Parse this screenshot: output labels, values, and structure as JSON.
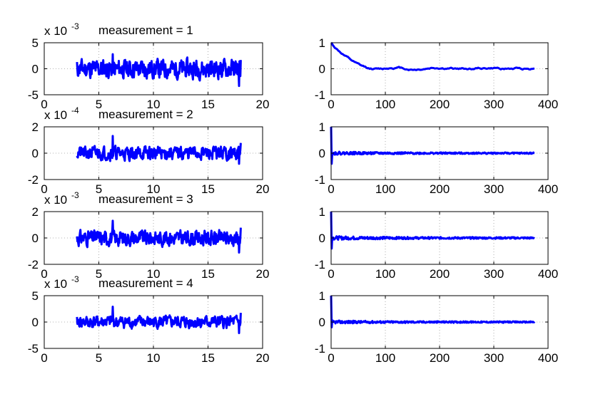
{
  "figure": {
    "series_color": "#0000ff",
    "grid": "dotted",
    "layout": "4 rows x 2 columns"
  },
  "chart_data": [
    {
      "type": "line",
      "title": "measurement = 1",
      "exponent_label": {
        "prefix": "x 10",
        "power": "-3"
      },
      "xlim": [
        0,
        20
      ],
      "ylim": [
        -5,
        5
      ],
      "xticks": [
        "0",
        "5",
        "10",
        "15",
        "20"
      ],
      "yticks": [
        "5",
        "0",
        "-5"
      ],
      "series": [
        {
          "x_range": [
            3,
            18
          ],
          "points": 380,
          "amplitude": 1.6,
          "peak": 2.8,
          "trough": -3.3,
          "seed": 11
        }
      ]
    },
    {
      "type": "line",
      "title": "",
      "xlim": [
        0,
        400
      ],
      "ylim": [
        -1,
        1
      ],
      "xticks": [
        "0",
        "100",
        "200",
        "300",
        "400"
      ],
      "yticks": [
        "1",
        "0",
        "-1"
      ],
      "series": [
        {
          "x_range": [
            0,
            375
          ],
          "start": 1.0,
          "settle": 0.05,
          "decay": 25,
          "noise": 0.12,
          "seed": 12
        }
      ]
    },
    {
      "type": "line",
      "title": "measurement = 2",
      "exponent_label": {
        "prefix": "x 10",
        "power": "-4"
      },
      "xlim": [
        0,
        20
      ],
      "ylim": [
        -2,
        2
      ],
      "xticks": [
        "0",
        "5",
        "10",
        "15",
        "20"
      ],
      "yticks": [
        "2",
        "0",
        "-2"
      ],
      "series": [
        {
          "x_range": [
            3,
            18
          ],
          "points": 380,
          "amplitude": 0.45,
          "peak": 1.3,
          "trough": -0.8,
          "seed": 21
        }
      ]
    },
    {
      "type": "line",
      "title": "",
      "xlim": [
        0,
        400
      ],
      "ylim": [
        -1,
        1
      ],
      "xticks": [
        "0",
        "100",
        "200",
        "300",
        "400"
      ],
      "yticks": [
        "1",
        "0",
        "-1"
      ],
      "series": [
        {
          "x_range": [
            0,
            375
          ],
          "start": 1.0,
          "dip": -0.4,
          "noise": 0.06,
          "seed": 22
        }
      ]
    },
    {
      "type": "line",
      "title": "measurement = 3",
      "exponent_label": {
        "prefix": "x 10",
        "power": "-3"
      },
      "xlim": [
        0,
        20
      ],
      "ylim": [
        -2,
        2
      ],
      "xticks": [
        "0",
        "5",
        "10",
        "15",
        "20"
      ],
      "yticks": [
        "2",
        "0",
        "-2"
      ],
      "series": [
        {
          "x_range": [
            3,
            18
          ],
          "points": 380,
          "amplitude": 0.5,
          "peak": 1.3,
          "trough": -1.1,
          "seed": 31
        }
      ]
    },
    {
      "type": "line",
      "title": "",
      "xlim": [
        0,
        400
      ],
      "ylim": [
        -1,
        1
      ],
      "xticks": [
        "0",
        "100",
        "200",
        "300",
        "400"
      ],
      "yticks": [
        "1",
        "0",
        "-1"
      ],
      "series": [
        {
          "x_range": [
            0,
            375
          ],
          "start": 1.0,
          "dip": -0.4,
          "noise": 0.07,
          "seed": 32
        }
      ]
    },
    {
      "type": "line",
      "title": "measurement = 4",
      "exponent_label": {
        "prefix": "x 10",
        "power": "-3"
      },
      "xlim": [
        0,
        20
      ],
      "ylim": [
        -5,
        5
      ],
      "xticks": [
        "0",
        "5",
        "10",
        "15",
        "20"
      ],
      "yticks": [
        "5",
        "0",
        "-5"
      ],
      "series": [
        {
          "x_range": [
            3,
            18
          ],
          "points": 380,
          "amplitude": 1.0,
          "peak": 2.9,
          "trough": -2.1,
          "seed": 41
        }
      ]
    },
    {
      "type": "line",
      "title": "",
      "xlim": [
        0,
        400
      ],
      "ylim": [
        -1,
        1
      ],
      "xticks": [
        "0",
        "100",
        "200",
        "300",
        "400"
      ],
      "yticks": [
        "1",
        "0",
        "-1"
      ],
      "series": [
        {
          "x_range": [
            0,
            375
          ],
          "start": 1.0,
          "dip": -0.2,
          "noise": 0.06,
          "seed": 42
        }
      ]
    }
  ]
}
